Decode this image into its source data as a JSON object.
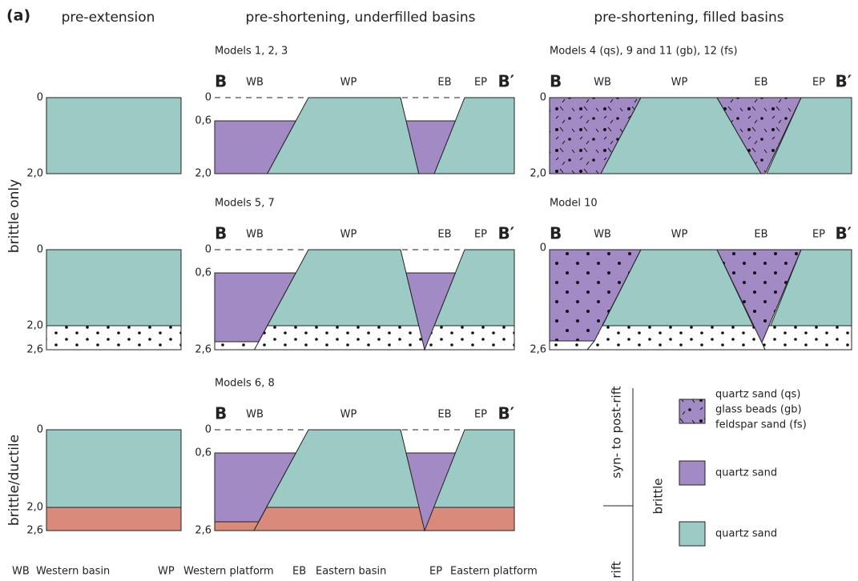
{
  "figure_label": "(a)",
  "column_headers": [
    "pre-extension",
    "pre-shortening, underfilled basins",
    "pre-shortening, filled basins"
  ],
  "row_labels": [
    "brittle only",
    "brittle/ductile"
  ],
  "panels": [
    {
      "depths": [
        "0",
        "2,0"
      ]
    },
    {
      "model": "Models 1, 2, 3",
      "section": [
        "B",
        "WB",
        "WP",
        "EB",
        "EP",
        "B′"
      ],
      "depths": [
        "0",
        "0,6",
        "2,0"
      ]
    },
    {
      "model": "Models 4 (qs), 9 and 11 (gb), 12 (fs)",
      "section": [
        "B",
        "WB",
        "WP",
        "EB",
        "EP",
        "B′"
      ],
      "depths": [
        "0",
        "2,0"
      ]
    },
    {
      "depths": [
        "0",
        "2,0",
        "2,6"
      ]
    },
    {
      "model": "Models 5, 7",
      "section": [
        "B",
        "WB",
        "WP",
        "EB",
        "EP",
        "B′"
      ],
      "depths": [
        "0",
        "0,6",
        "2,6"
      ]
    },
    {
      "model": "Model 10",
      "section": [
        "B",
        "WB",
        "WP",
        "EB",
        "EP",
        "B′"
      ],
      "depths": [
        "0",
        "2,6"
      ]
    },
    {
      "depths": [
        "0",
        "2,0",
        "2,6"
      ]
    },
    {
      "model": "Models 6, 8",
      "section": [
        "B",
        "WB",
        "WP",
        "EB",
        "EP",
        "B′"
      ],
      "depths": [
        "0",
        "0,6",
        "2,6"
      ]
    }
  ],
  "legend": {
    "group_labels": [
      "syn- to post-rift",
      "brittle",
      "rift"
    ],
    "items": [
      {
        "lines": [
          "quartz sand (qs)",
          "glass beads (gb)",
          "feldspar sand (fs)"
        ]
      },
      {
        "lines": [
          "quartz sand"
        ]
      },
      {
        "lines": [
          "quartz sand"
        ]
      }
    ]
  },
  "abbreviations": [
    {
      "code": "WB",
      "name": "Western basin"
    },
    {
      "code": "WP",
      "name": "Western platform"
    },
    {
      "code": "EB",
      "name": "Eastern basin"
    },
    {
      "code": "EP",
      "name": "Eastern platform"
    }
  ]
}
